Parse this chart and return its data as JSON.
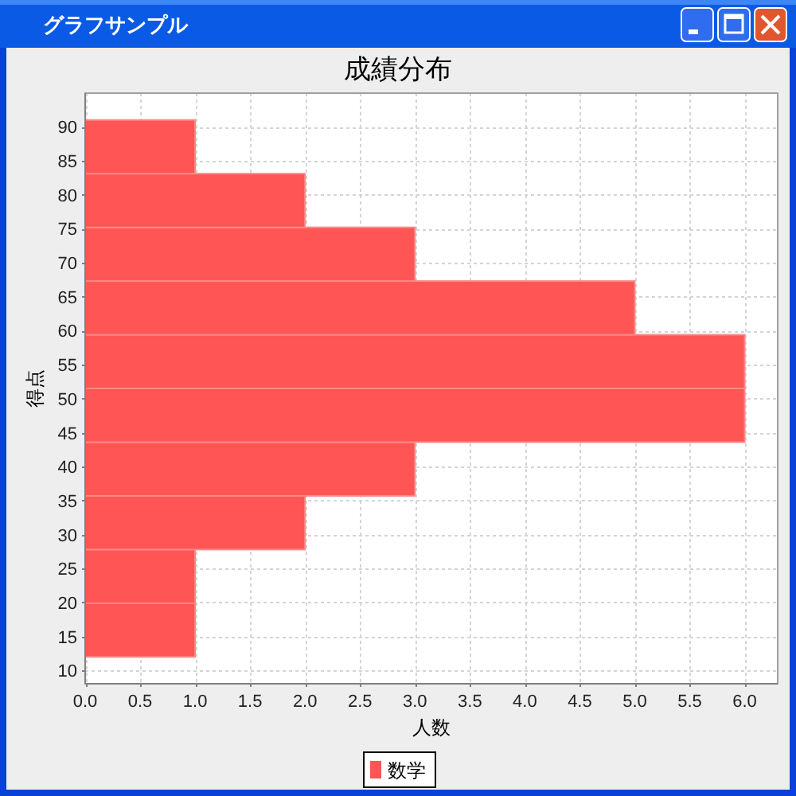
{
  "chart_data": {
    "type": "histogram",
    "orientation": "horizontal",
    "title": "成績分布",
    "xlabel": "人数",
    "ylabel": "得点",
    "bins": [
      12,
      19.9,
      27.8,
      35.7,
      43.6,
      51.5,
      59.4,
      67.3,
      75.2,
      83.1,
      91
    ],
    "series": [
      {
        "name": "数学",
        "color": "#ff5555",
        "values": [
          1,
          1,
          2,
          3,
          6,
          6,
          5,
          3,
          2,
          1
        ]
      }
    ],
    "xlim": [
      0,
      6.3
    ],
    "xticks": [
      {
        "value": 0,
        "label": "0.0"
      },
      {
        "value": 0.5,
        "label": "0.5"
      },
      {
        "value": 1,
        "label": "1.0"
      },
      {
        "value": 1.5,
        "label": "1.5"
      },
      {
        "value": 2,
        "label": "2.0"
      },
      {
        "value": 2.5,
        "label": "2.5"
      },
      {
        "value": 3,
        "label": "3.0"
      },
      {
        "value": 3.5,
        "label": "3.5"
      },
      {
        "value": 4,
        "label": "4.0"
      },
      {
        "value": 4.5,
        "label": "4.5"
      },
      {
        "value": 5,
        "label": "5.0"
      },
      {
        "value": 5.5,
        "label": "5.5"
      },
      {
        "value": 6,
        "label": "6.0"
      }
    ],
    "ylim": [
      8.05,
      94.95
    ],
    "yticks": [
      10,
      15,
      20,
      25,
      30,
      35,
      40,
      45,
      50,
      55,
      60,
      65,
      70,
      75,
      80,
      85,
      90
    ],
    "grid": true,
    "legend": "bottom",
    "annotations": [
      "グラフサンプル"
    ]
  }
}
